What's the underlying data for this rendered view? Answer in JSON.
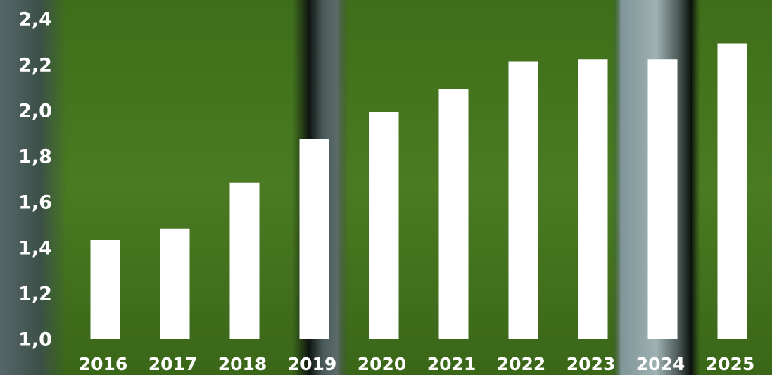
{
  "chart_data": {
    "type": "bar",
    "categories": [
      "2016",
      "2017",
      "2018",
      "2019",
      "2020",
      "2021",
      "2022",
      "2023",
      "2024",
      "2025"
    ],
    "values": [
      1.44,
      1.49,
      1.69,
      1.88,
      2.0,
      2.1,
      2.22,
      2.23,
      2.23,
      2.3
    ],
    "color": "#ffffff",
    "ylim": [
      1.0,
      2.4
    ],
    "yticks": [
      {
        "value": 1.0,
        "label": "1,0"
      },
      {
        "value": 1.2,
        "label": "1,2"
      },
      {
        "value": 1.4,
        "label": "1,4"
      },
      {
        "value": 1.6,
        "label": "1,6"
      },
      {
        "value": 1.8,
        "label": "1,8"
      },
      {
        "value": 2.0,
        "label": "2,0"
      },
      {
        "value": 2.2,
        "label": "2,2"
      },
      {
        "value": 2.4,
        "label": "2,4"
      }
    ],
    "grid": false
  }
}
